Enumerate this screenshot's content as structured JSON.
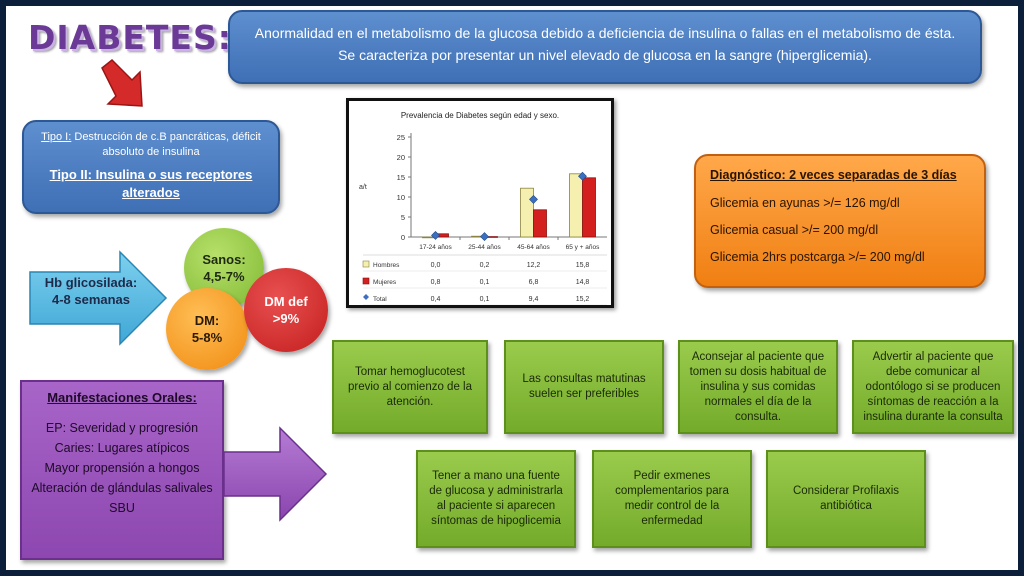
{
  "title": "DIABETES:",
  "definition": "Anormalidad en el metabolismo de la glucosa debido a deficiencia de insulina o fallas en el metabolismo de ésta. Se caracteriza por presentar un nivel elevado de glucosa en la sangre (hiperglicemia).",
  "types": {
    "type1_label": "Tipo I:",
    "type1_text": " Destrucción de c.B pancráticas, déficit absoluto de insulina",
    "type2": "Tipo II: Insulina o sus receptores alterados"
  },
  "hb": {
    "label": "Hb glicosilada:",
    "range": "4-8 semanas"
  },
  "circles": {
    "healthy_label": "Sanos:",
    "healthy_value": "4,5-7%",
    "dm_label": "DM:",
    "dm_value": "5-8%",
    "dmdef_label": "DM def",
    "dmdef_value": ">9%"
  },
  "oral": {
    "title": "Manifestaciones Orales:",
    "items": [
      "EP: Severidad y progresión",
      "Caries: Lugares atípicos",
      "Mayor propensión a hongos",
      "Alteración de glándulas salivales",
      "SBU"
    ]
  },
  "diagnosis": {
    "title": "Diagnóstico:  2 veces separadas de 3 días",
    "lines": [
      "Glicemia en ayunas >/= 126 mg/dl",
      "Glicemia casual >/= 200 mg/dl",
      "Glicemia 2hrs postcarga >/= 200 mg/dl"
    ]
  },
  "recommendations": [
    "Tomar hemoglucotest previo al comienzo de la atención.",
    "Las consultas matutinas suelen ser preferibles",
    "Aconsejar al paciente que tomen su dosis habitual de insulina y sus comidas normales el día de la consulta.",
    "Advertir al paciente que debe comunicar al odontólogo si se producen síntomas de reacción a la insulina durante la consulta",
    "Tener a mano una fuente de glucosa y administrarla al paciente si aparecen síntomas de hipoglicemia",
    "Pedir exmenes complementarios para medir control de la enfermedad",
    "Considerar Profilaxis antibiótica"
  ],
  "colors": {
    "title": "#6a3a96",
    "hombres": "#f5efb0",
    "mujeres": "#d41f1f",
    "total": "#3a6fc2"
  },
  "chart_data": {
    "type": "bar",
    "title": "Prevalencia de Diabetes según edad y sexo.",
    "ylabel": "a/t",
    "ylim": [
      0,
      25
    ],
    "yticks": [
      "0",
      "5",
      "10",
      "15",
      "20",
      "25"
    ],
    "categories": [
      "17-24 años",
      "25-44 años",
      "45-64 años",
      "65 y + años"
    ],
    "series": [
      {
        "name": "Hombres",
        "values": [
          0.0,
          0.2,
          12.2,
          15.8
        ],
        "labels": [
          "0,0",
          "0,2",
          "12,2",
          "15,8"
        ]
      },
      {
        "name": "Mujeres",
        "values": [
          0.8,
          0.1,
          6.8,
          14.8
        ],
        "labels": [
          "0,8",
          "0,1",
          "6,8",
          "14,8"
        ]
      },
      {
        "name": "Total",
        "values": [
          0.4,
          0.1,
          9.4,
          15.2
        ],
        "labels": [
          "0,4",
          "0,1",
          "9,4",
          "15,2"
        ]
      }
    ],
    "grid": false,
    "legend": "table-below"
  }
}
